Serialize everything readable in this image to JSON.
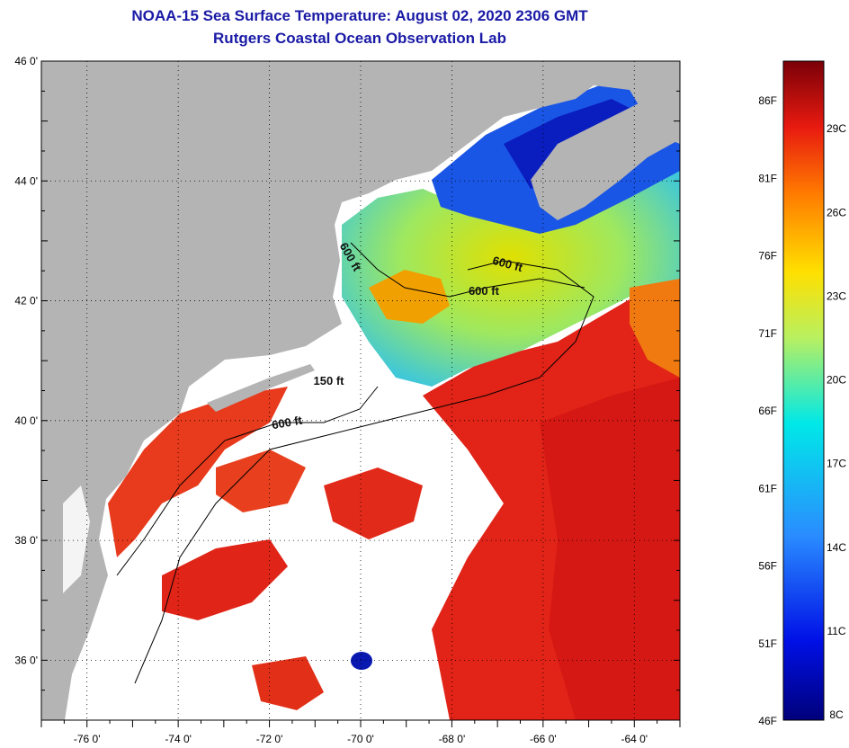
{
  "header": {
    "title": "NOAA-15 Sea Surface Temperature:  August 02, 2020 2306 GMT",
    "subtitle": "Rutgers Coastal Ocean Observation Lab"
  },
  "map": {
    "lon_range": [
      -77,
      -63
    ],
    "lat_range": [
      35,
      46
    ],
    "lat_ticks": [
      {
        "value": 46,
        "label": "46 0'"
      },
      {
        "value": 44,
        "label": "44 0'"
      },
      {
        "value": 42,
        "label": "42 0'"
      },
      {
        "value": 40,
        "label": "40 0'"
      },
      {
        "value": 38,
        "label": "38 0'"
      },
      {
        "value": 36,
        "label": "36 0'"
      }
    ],
    "lon_ticks": [
      {
        "value": -76,
        "label": "-76 0'"
      },
      {
        "value": -74,
        "label": "-74 0'"
      },
      {
        "value": -72,
        "label": "-72 0'"
      },
      {
        "value": -70,
        "label": "-70 0'"
      },
      {
        "value": -68,
        "label": "-68 0'"
      },
      {
        "value": -66,
        "label": "-66 0'"
      },
      {
        "value": -64,
        "label": "-64 0'"
      }
    ],
    "contour_labels": [
      {
        "text": "600 ft",
        "lon": -70.3,
        "lat": 42.7,
        "rotate": 60
      },
      {
        "text": "600 ft",
        "lon": -66.8,
        "lat": 42.55,
        "rotate": 15
      },
      {
        "text": "600 ft",
        "lon": -67.3,
        "lat": 42.1,
        "rotate": 0
      },
      {
        "text": "150 ft",
        "lon": -70.7,
        "lat": 40.6,
        "rotate": 0
      },
      {
        "text": "600 ft",
        "lon": -71.6,
        "lat": 39.9,
        "rotate": -10
      }
    ],
    "colors": {
      "land": "#b4b4b4",
      "cloud": "#ffffff",
      "warm": "#e22016",
      "hot": "#b80f12",
      "mid": "#f6d200",
      "cool": "#1650e0",
      "cold": "#0a10b8"
    }
  },
  "colorbar": {
    "fahrenheit": [
      {
        "label": "86F",
        "value": 86
      },
      {
        "label": "81F",
        "value": 81
      },
      {
        "label": "76F",
        "value": 76
      },
      {
        "label": "71F",
        "value": 71
      },
      {
        "label": "66F",
        "value": 66
      },
      {
        "label": "61F",
        "value": 61
      },
      {
        "label": "56F",
        "value": 56
      },
      {
        "label": "51F",
        "value": 51
      },
      {
        "label": "46F",
        "value": 46
      }
    ],
    "celsius": [
      {
        "label": "29C",
        "value": 29
      },
      {
        "label": "26C",
        "value": 26
      },
      {
        "label": "23C",
        "value": 23
      },
      {
        "label": "20C",
        "value": 20
      },
      {
        "label": "17C",
        "value": 17
      },
      {
        "label": "14C",
        "value": 14
      },
      {
        "label": "11C",
        "value": 11
      },
      {
        "label": "8C",
        "value": 8
      }
    ]
  }
}
